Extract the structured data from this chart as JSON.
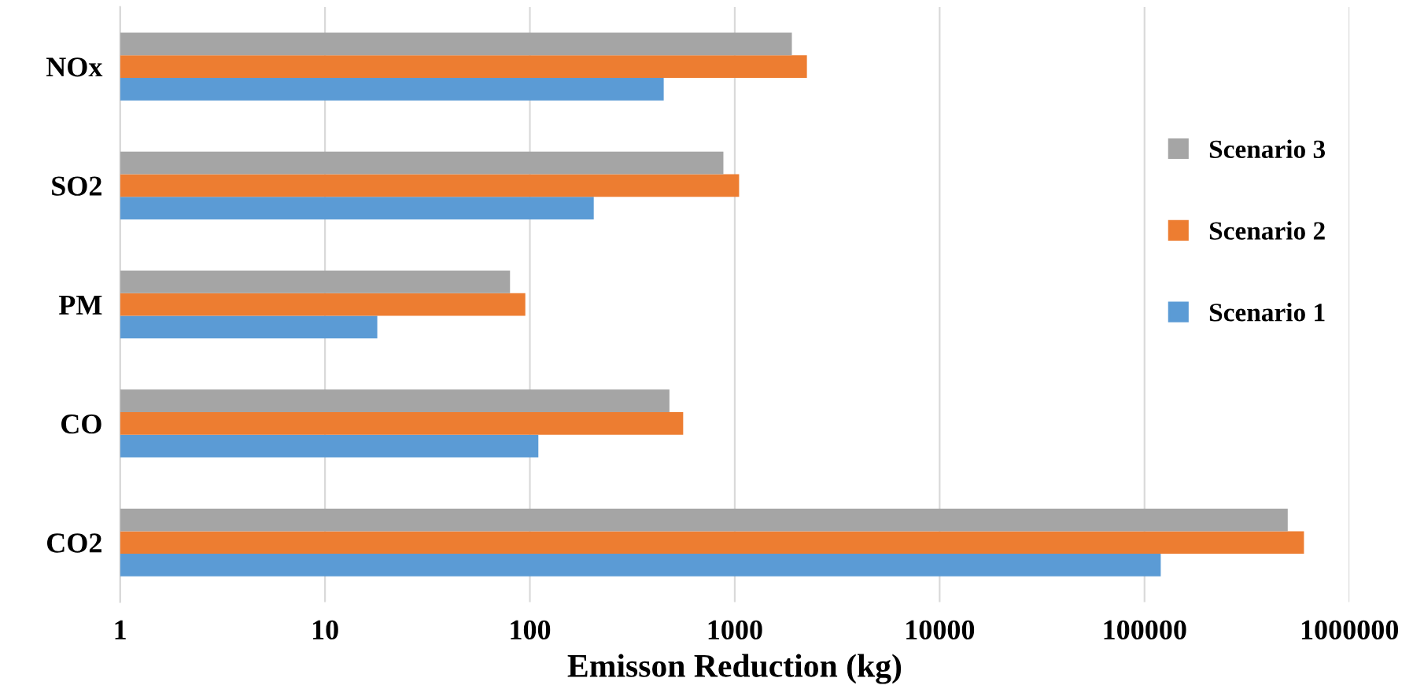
{
  "chart_data": {
    "type": "bar",
    "orientation": "horizontal",
    "xlabel": "Emisson Reduction (kg)",
    "categories": [
      "NOx",
      "SO2",
      "PM",
      "CO",
      "CO2"
    ],
    "series": [
      {
        "name": "Scenario 1",
        "color": "#5b9bd5",
        "values": [
          450,
          205,
          18,
          110,
          120000
        ]
      },
      {
        "name": "Scenario 2",
        "color": "#ed7d31",
        "values": [
          2250,
          1050,
          95,
          560,
          600000
        ]
      },
      {
        "name": "Scenario 3",
        "color": "#a5a5a5",
        "values": [
          1900,
          880,
          80,
          480,
          500000
        ]
      }
    ],
    "log": "x",
    "xlim": [
      1,
      1000000
    ],
    "xticks": [
      1,
      10,
      100,
      1000,
      10000,
      100000,
      1000000
    ],
    "grid": "x",
    "legend": "right"
  }
}
